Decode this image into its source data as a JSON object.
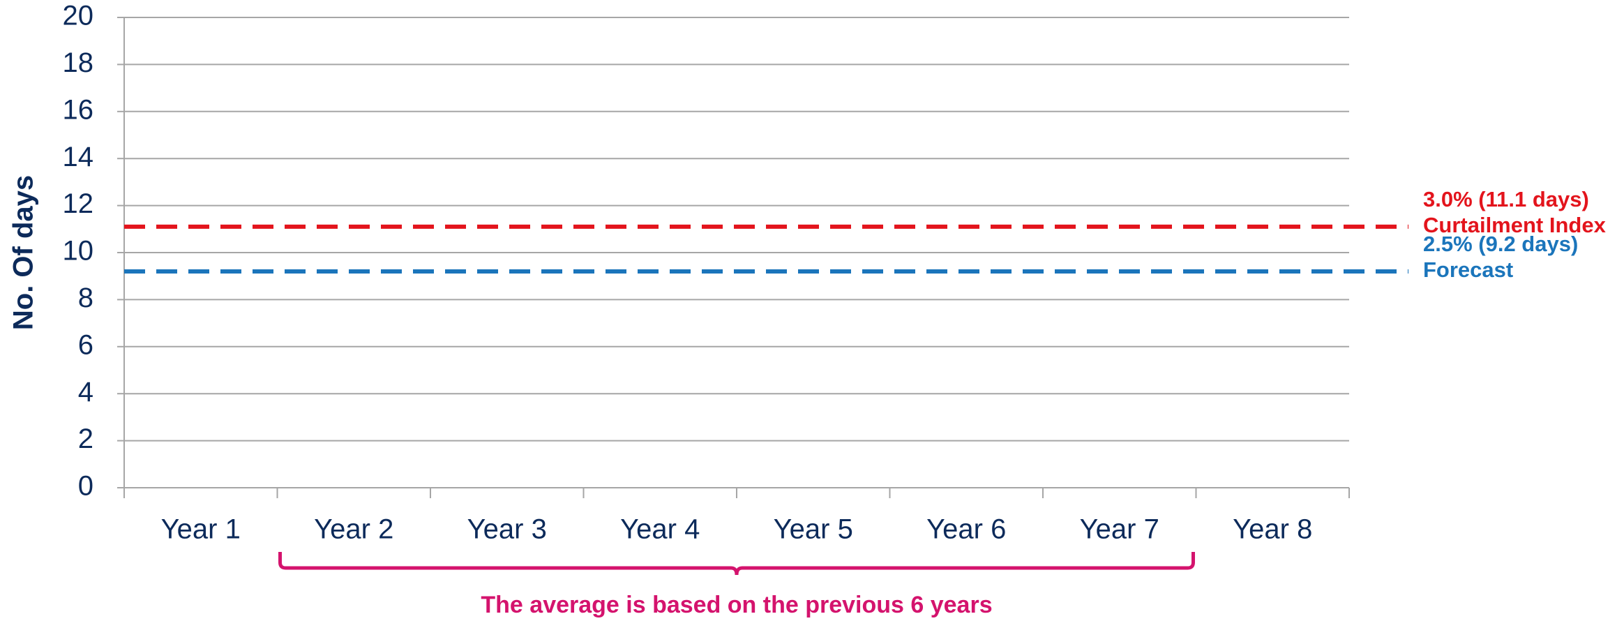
{
  "chart_data": {
    "type": "reference_lines",
    "y_axis_label": "No. Of days",
    "categories": [
      "Year 1",
      "Year 2",
      "Year 3",
      "Year 4",
      "Year 5",
      "Year 6",
      "Year 7",
      "Year 8"
    ],
    "ylim": [
      0,
      20
    ],
    "yticks": [
      0,
      2,
      4,
      6,
      8,
      10,
      12,
      14,
      16,
      18,
      20
    ],
    "grid": true,
    "series": [
      {
        "name": "Curtailment Index",
        "value_label": "3.0% (11.1 days)",
        "value": 11.1,
        "color": "#e3141c"
      },
      {
        "name": "Forecast",
        "value_label": "2.5% (9.2 days)",
        "value": 9.2,
        "color": "#1b75bb"
      }
    ],
    "annotation": "The average is based on the previous 6 years",
    "annotation_color": "#d4136d"
  }
}
